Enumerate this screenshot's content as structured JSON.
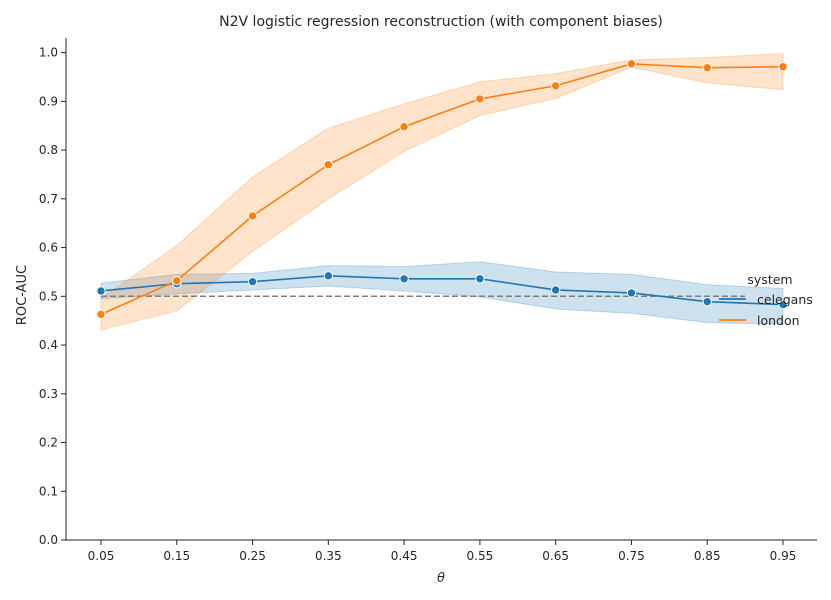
{
  "chart_data": {
    "type": "line",
    "title": "N2V logistic regression reconstruction (with component biases)",
    "xlabel": "θ",
    "ylabel": "ROC-AUC",
    "categories": [
      "0.05",
      "0.15",
      "0.25",
      "0.35",
      "0.45",
      "0.55",
      "0.65",
      "0.75",
      "0.85",
      "0.95"
    ],
    "ylim": [
      0,
      1.03
    ],
    "yticks": [
      "0.0",
      "0.1",
      "0.2",
      "0.3",
      "0.4",
      "0.5",
      "0.6",
      "0.7",
      "0.8",
      "0.9",
      "1.0"
    ],
    "grid": false,
    "legend": {
      "title": "system",
      "position": "center-right"
    },
    "reference_line": {
      "y": 0.5,
      "style": "dashed",
      "color": "#7f7f7f"
    },
    "series": [
      {
        "name": "celegans",
        "color": "#1f77b4",
        "values": [
          0.511,
          0.526,
          0.53,
          0.542,
          0.536,
          0.536,
          0.513,
          0.507,
          0.489,
          0.483
        ],
        "lower": [
          0.495,
          0.505,
          0.513,
          0.521,
          0.511,
          0.499,
          0.474,
          0.465,
          0.446,
          0.443
        ],
        "upper": [
          0.527,
          0.545,
          0.547,
          0.563,
          0.561,
          0.571,
          0.55,
          0.545,
          0.524,
          0.516
        ]
      },
      {
        "name": "london",
        "color": "#ff7f0e",
        "values": [
          0.463,
          0.532,
          0.665,
          0.77,
          0.848,
          0.905,
          0.932,
          0.977,
          0.969,
          0.971
        ],
        "lower": [
          0.431,
          0.47,
          0.592,
          0.7,
          0.797,
          0.871,
          0.906,
          0.97,
          0.938,
          0.924
        ],
        "upper": [
          0.496,
          0.604,
          0.745,
          0.845,
          0.895,
          0.94,
          0.957,
          0.985,
          0.99,
          0.998
        ]
      }
    ]
  }
}
